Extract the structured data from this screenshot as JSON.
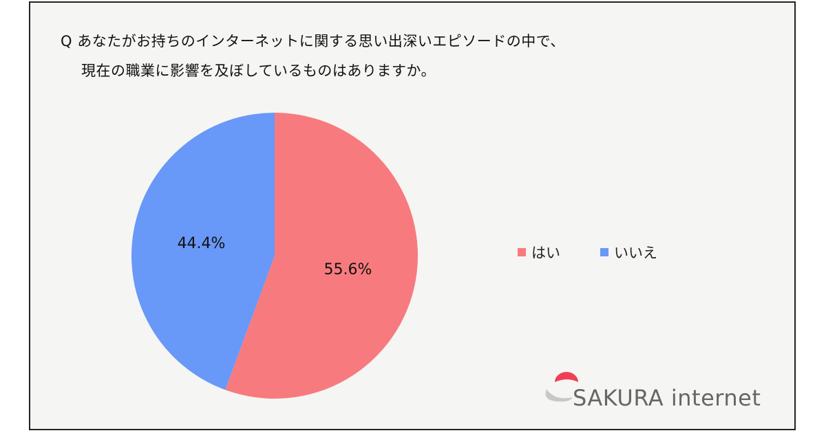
{
  "question": {
    "line1": "Q あなたがお持ちのインターネットに関する思い出深いエピソードの中で、",
    "line2": "現在の職業に影響を及ぼしているものはありますか。"
  },
  "chart_data": {
    "type": "pie",
    "title": "",
    "slices": [
      {
        "label": "はい",
        "value": 55.6,
        "display": "55.6%",
        "color": "#f77b7e"
      },
      {
        "label": "いいえ",
        "value": 44.4,
        "display": "44.4%",
        "color": "#6898f8"
      }
    ],
    "legend_position": "right"
  },
  "logo": {
    "text": "SAKURA internet",
    "accent_color": "#ef3f55",
    "icon": "sakura-logo-icon"
  }
}
